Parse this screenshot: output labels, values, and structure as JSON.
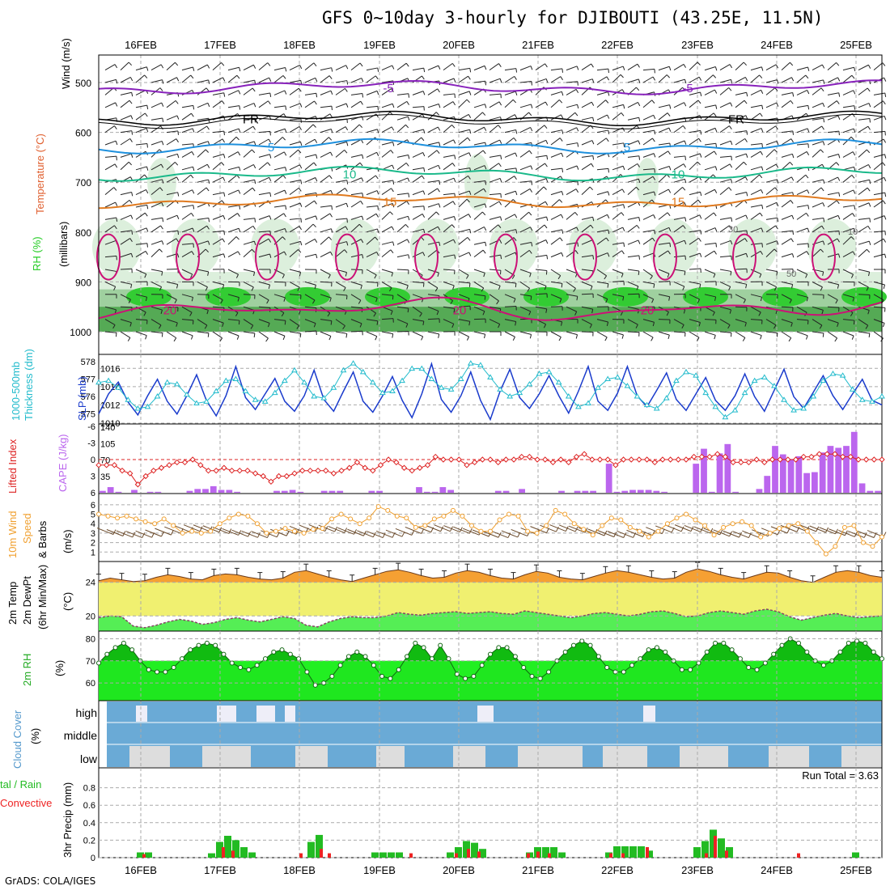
{
  "header": {
    "title": "GFS 0~10day 3-hourly for DJIBOUTI (43.25E, 11.5N)",
    "credit": "GrADS: COLA/IGES"
  },
  "colors": {
    "rh_green": "#33cc33",
    "rh_light": "#dcefdc",
    "rh_mid": "#9fd09f",
    "rh_dark": "#55aa55",
    "t_minus5": "#8822bb",
    "t_fr": "#000000",
    "t_5": "#1e90dd",
    "t_10": "#1ab98a",
    "t_15": "#e07a1f",
    "t_20": "#cc1177",
    "slp": "#1a3bcc",
    "thickness": "#22bbcc",
    "cape": "#bb66ee",
    "lifted_index": "#dd2222",
    "wind_speed": "#f0a030",
    "barbs": "#6b4a2a",
    "temp_fill": "#f5a033",
    "dew_band": "#f0f070",
    "dew_fill": "#55ee55",
    "rh2m_dark": "#11bb11",
    "rh2m_light": "#22ee22",
    "cloud_bg": "#6aaad6",
    "cloud_fill": "#dddddd",
    "precip_total": "#22bb22",
    "precip_conv": "#ee2222"
  },
  "chart_data": [
    {
      "panel": "upper-air",
      "type": "heatmap",
      "x_dates": [
        "16FEB",
        "17FEB",
        "18FEB",
        "19FEB",
        "20FEB",
        "21FEB",
        "22FEB",
        "23FEB",
        "24FEB",
        "25FEB"
      ],
      "yaxis": {
        "ticks": [
          500,
          600,
          700,
          800,
          900,
          1000
        ],
        "label_rh": "RH (%)",
        "label_temp": "Temperature (°C)",
        "label_wind": "Wind (m/s)",
        "label_units": "(millibars)"
      },
      "temperature_contours": [
        {
          "value": "-5",
          "color": "#8822bb",
          "level_mb": 510,
          "labels": [
            "-5",
            "-5"
          ]
        },
        {
          "value": "FR",
          "color": "#000000",
          "level_mb": 572,
          "labels": [
            "FR",
            "FR"
          ]
        },
        {
          "value": "5",
          "color": "#1e90dd",
          "level_mb": 628,
          "labels": [
            "5",
            "5"
          ]
        },
        {
          "value": "10",
          "color": "#1ab98a",
          "level_mb": 683,
          "labels": [
            "10",
            "10"
          ]
        },
        {
          "value": "15",
          "color": "#e07a1f",
          "level_mb": 738,
          "labels": [
            "15",
            "15"
          ]
        },
        {
          "value": "20",
          "color": "#cc1177",
          "level_mb": 955,
          "labels": [
            "20",
            "20",
            "20"
          ]
        }
      ],
      "rh_labels": [
        "30",
        "10",
        "50"
      ]
    },
    {
      "panel": "slp-thickness",
      "type": "line",
      "label_left": "1000-500mb Thickness (dm)",
      "label_right": "SLP (mb)",
      "thickness_ticks": [
        575,
        576,
        577,
        578
      ],
      "slp_ticks": [
        1010,
        1012,
        1014,
        1016
      ],
      "series": [
        {
          "name": "SLP (mb)",
          "values": [
            1011.0,
            1013.2,
            1014.5,
            1012.3,
            1010.9,
            1013.0,
            1014.8,
            1012.4,
            1011.0,
            1013.0,
            1015.3,
            1012.5,
            1010.8,
            1013.0,
            1016.2,
            1012.8,
            1011.5,
            1013.2,
            1014.9,
            1012.4,
            1011.3,
            1013.0,
            1015.8,
            1012.6,
            1011.3,
            1013.5,
            1015.6,
            1012.4,
            1011.2,
            1013.0,
            1015.1,
            1012.5,
            1010.6,
            1013.2,
            1016.5,
            1012.6,
            1011.2,
            1013.0,
            1015.6,
            1012.5,
            1010.4,
            1013.5,
            1015.9,
            1012.8,
            1011.6,
            1013.2,
            1015.2,
            1013.0,
            1011.1,
            1013.5,
            1016.2,
            1012.4,
            1011.4,
            1013.3,
            1016.2,
            1013.0,
            1011.8,
            1013.6,
            1015.5,
            1012.6,
            1011.4,
            1013.2,
            1015.0,
            1012.5,
            1011.4,
            1013.0,
            1015.4,
            1012.9,
            1011.3,
            1013.6,
            1015.9,
            1012.9,
            1011.6,
            1013.4,
            1015.2,
            1013.0,
            1011.5,
            1013.2,
            1014.8,
            1012.5,
            1012.0
          ]
        },
        {
          "name": "Thickness (dm)",
          "values": [
            576.8,
            576.9,
            576.5,
            575.8,
            575.3,
            575.4,
            576.0,
            576.8,
            576.7,
            576.1,
            575.6,
            575.7,
            576.3,
            576.9,
            577.0,
            576.3,
            575.8,
            575.7,
            576.2,
            576.9,
            577.5,
            576.8,
            576.0,
            575.9,
            576.5,
            577.5,
            577.9,
            577.4,
            576.8,
            576.2,
            576.3,
            576.9,
            577.6,
            577.6,
            577.0,
            576.5,
            576.4,
            577.0,
            577.9,
            577.8,
            577.1,
            576.4,
            576.0,
            576.2,
            576.7,
            577.3,
            577.4,
            576.8,
            576.0,
            575.4,
            575.6,
            576.5,
            577.0,
            577.1,
            576.6,
            576.0,
            575.5,
            575.3,
            575.9,
            576.9,
            577.4,
            577.2,
            576.2,
            575.4,
            574.8,
            575.2,
            576.2,
            576.9,
            577.1,
            576.6,
            575.8,
            575.2,
            575.3,
            576.0,
            576.9,
            577.3,
            577.2,
            576.4,
            575.8,
            575.7,
            576.0
          ]
        }
      ]
    },
    {
      "panel": "cape-lifted-index",
      "type": "bar",
      "label_left": "Lifted Index",
      "label_right": "CAPE (J/kg)",
      "li_ticks": [
        -6,
        -3,
        0,
        3,
        6
      ],
      "cape_ticks": [
        35,
        70,
        105,
        140
      ],
      "series": [
        {
          "name": "CAPE (J/kg)",
          "values": [
            4,
            12,
            2,
            0,
            6,
            0,
            2,
            2,
            0,
            0,
            0,
            4,
            8,
            8,
            14,
            6,
            6,
            2,
            0,
            0,
            0,
            0,
            4,
            4,
            6,
            2,
            0,
            0,
            4,
            4,
            4,
            0,
            0,
            0,
            4,
            4,
            0,
            0,
            0,
            0,
            12,
            2,
            2,
            12,
            6,
            0,
            0,
            0,
            0,
            0,
            4,
            4,
            0,
            8,
            0,
            0,
            0,
            0,
            4,
            0,
            4,
            4,
            4,
            0,
            62,
            2,
            4,
            6,
            6,
            6,
            4,
            2,
            0,
            0,
            0,
            62,
            94,
            2,
            84,
            104,
            2,
            0,
            0,
            8,
            36,
            100,
            82,
            72,
            78,
            42,
            44,
            86,
            100,
            96,
            100,
            130,
            20,
            4,
            4
          ]
        },
        {
          "name": "Lifted Index",
          "values": [
            1.0,
            1.0,
            1.0,
            2.0,
            2.5,
            4.5,
            3.0,
            2.0,
            1.5,
            1.0,
            0.5,
            0.5,
            0.0,
            1.0,
            2.0,
            2.0,
            1.5,
            2.0,
            2.0,
            2.0,
            2.5,
            3.0,
            4.0,
            3.0,
            3.0,
            2.5,
            2.0,
            2.0,
            2.0,
            2.0,
            2.5,
            2.0,
            1.5,
            0.5,
            1.5,
            2.0,
            1.0,
            0.0,
            0.5,
            1.5,
            2.0,
            1.5,
            1.0,
            -0.5,
            0.0,
            0.0,
            0.0,
            1.0,
            0.5,
            0.0,
            0.0,
            0.5,
            0.0,
            0.0,
            -0.5,
            -0.5,
            0.0,
            0.0,
            0.5,
            0.0,
            0.5,
            -0.5,
            -1.0,
            0.0,
            0.0,
            0.0,
            1.0,
            0.0,
            0.0,
            0.0,
            0.0,
            0.5,
            0.0,
            0.0,
            0.0,
            0.0,
            -0.5,
            -0.5,
            -0.5,
            -1.0,
            -0.5,
            0.5,
            0.5,
            0.5,
            0.0,
            0.5,
            0.0,
            0.0,
            0.0,
            0.0,
            -0.5,
            -0.5,
            -1.0,
            -1.0,
            -1.0,
            -0.5,
            -0.5,
            0.0,
            0.0,
            0.0,
            0.0
          ]
        }
      ]
    },
    {
      "panel": "wind10m",
      "type": "line",
      "label_left": "10m Wind Speed",
      "label_right": "& Barbs (m/s)",
      "ticks": [
        1,
        2,
        3,
        4,
        5,
        6
      ],
      "series": [
        {
          "name": "Speed",
          "values": [
            5.0,
            4.8,
            4.6,
            4.8,
            4.5,
            4.2,
            4.0,
            4.5,
            3.8,
            3.0,
            3.2,
            3.0,
            3.2,
            4.0,
            4.6,
            5.0,
            4.8,
            4.0,
            3.0,
            3.2,
            3.5,
            3.2,
            3.0,
            3.4,
            3.5,
            4.5,
            5.0,
            4.5,
            4.0,
            4.6,
            5.8,
            5.4,
            4.8,
            4.6,
            3.6,
            3.8,
            4.5,
            4.8,
            5.4,
            4.8,
            3.8,
            3.2,
            3.2,
            4.4,
            5.0,
            4.8,
            3.2,
            3.0,
            3.8,
            5.4,
            5.0,
            4.0,
            3.4,
            2.8,
            3.8,
            4.6,
            4.4,
            3.6,
            3.2,
            2.6,
            3.2,
            4.0,
            4.6,
            5.0,
            4.4,
            3.8,
            2.8,
            3.6,
            4.0,
            4.2,
            3.8,
            2.6,
            3.0,
            3.5,
            3.8,
            4.0,
            3.2,
            2.0,
            0.8,
            1.6,
            3.6,
            3.8,
            2.0,
            1.6,
            2.6
          ]
        }
      ]
    },
    {
      "panel": "temperature2m",
      "type": "area",
      "label": "2m Temp 2m DewPt (6hr Min/Max) (°C)",
      "ticks": [
        20,
        24
      ],
      "series": [
        {
          "name": "2m Temp",
          "values": [
            24.2,
            24.5,
            24.3,
            24.1,
            24.2,
            24.6,
            24.9,
            24.7,
            24.4,
            24.3,
            24.8,
            25.0,
            24.9,
            24.6,
            24.4,
            24.3,
            24.5,
            25.2,
            25.4,
            25.0,
            24.6,
            24.3,
            24.1,
            24.5,
            24.9,
            25.3,
            25.5,
            25.2,
            24.8,
            24.5,
            24.6,
            25.1,
            25.4,
            25.2,
            24.8,
            24.5,
            24.4,
            24.9,
            25.3,
            25.1,
            24.6,
            24.4,
            24.3,
            24.7,
            25.1,
            25.4,
            25.2,
            24.9,
            24.6,
            24.4,
            24.5,
            25.2,
            25.6,
            25.3,
            24.9,
            24.6,
            24.4,
            24.8,
            25.2,
            25.1,
            24.6,
            24.2,
            24.0,
            24.6,
            25.2,
            25.4,
            25.2,
            24.8,
            24.6
          ]
        },
        {
          "name": "2m DewPt",
          "values": [
            19.8,
            20.0,
            19.9,
            18.8,
            18.6,
            18.9,
            19.3,
            19.6,
            19.4,
            19.0,
            19.2,
            19.6,
            19.8,
            19.5,
            19.3,
            19.6,
            19.9,
            19.7,
            18.9,
            18.7,
            19.3,
            19.7,
            19.9,
            19.8,
            19.8,
            20.0,
            20.4,
            20.2,
            20.1,
            20.3,
            20.4,
            20.5,
            20.3,
            20.4,
            20.5,
            20.3,
            20.2,
            20.6,
            20.4,
            20.2,
            20.0,
            19.8,
            20.0,
            20.3,
            20.4,
            20.2,
            20.0,
            20.2,
            20.5,
            20.6,
            20.3,
            19.9,
            20.0,
            20.4,
            20.6,
            20.4,
            20.2,
            20.6,
            20.8,
            20.5,
            19.9,
            19.5,
            19.8,
            20.1,
            20.3,
            20.0,
            19.8,
            19.9,
            20.0
          ]
        }
      ]
    },
    {
      "panel": "rh2m",
      "type": "area",
      "label": "2m RH (%)",
      "ticks": [
        60,
        70,
        80
      ],
      "series": [
        {
          "name": "2m RH",
          "values": [
            69,
            73,
            76,
            78,
            75,
            70,
            66,
            65,
            65,
            67,
            71,
            75,
            77,
            78,
            77,
            73,
            69,
            67,
            66,
            68,
            71,
            74,
            75,
            73,
            71,
            65,
            59,
            60,
            63,
            68,
            72,
            74,
            72,
            68,
            63,
            62,
            66,
            72,
            78,
            76,
            71,
            77,
            71,
            64,
            62,
            63,
            68,
            73,
            76,
            76,
            72,
            67,
            63,
            62,
            65,
            70,
            74,
            77,
            79,
            77,
            72,
            67,
            65,
            65,
            68,
            71,
            75,
            76,
            74,
            70,
            66,
            66,
            69,
            74,
            78,
            78,
            75,
            71,
            67,
            66,
            69,
            73,
            77,
            80,
            78,
            74,
            70,
            68,
            70,
            74,
            78,
            79,
            78,
            74,
            71
          ]
        }
      ]
    },
    {
      "panel": "cloud-cover",
      "type": "bar",
      "label": "Cloud Cover (%)",
      "rows": [
        "high",
        "middle",
        "low"
      ]
    },
    {
      "panel": "precip",
      "type": "bar",
      "label_left": "Total / Rain",
      "label_conv": "Convective",
      "ylabel": "3hr Precip (mm)",
      "ticks": [
        0,
        0.2,
        0.4,
        0.6,
        0.8
      ],
      "annotation": "Run Total = 3.63"
    }
  ],
  "chart_labels": {
    "date_labels": [
      "16FEB",
      "17FEB",
      "18FEB",
      "19FEB",
      "20FEB",
      "21FEB",
      "22FEB",
      "23FEB",
      "24FEB",
      "25FEB"
    ],
    "rh_pct": "RH (%)",
    "temperature": "Temperature (°C)",
    "wind_ms": "Wind (m/s)",
    "millibars": "(millibars)",
    "thickness": "1000-500mb",
    "thickness2": "Thickness (dm)",
    "slp": "SLP (mb)",
    "lifted": "Lifted Index",
    "cape": "CAPE (J/kg)",
    "wind10_a": "10m Wind",
    "wind10_b": "Speed",
    "wind10_c": "& Barbs",
    "wind10_d": "(m/s)",
    "t2_a": "2m Temp",
    "t2_b": "2m DewPt",
    "t2_c": "(6hr Min/Max)",
    "t2_d": "(°C)",
    "rh2": "2m RH",
    "rh2_pct": "(%)",
    "cloud_a": "Cloud Cover",
    "cloud_b": "(%)",
    "high": "high",
    "middle": "middle",
    "low": "low",
    "precip_a": "tal / Rain",
    "precip_b": "Convective",
    "precip_c": "3hr Precip (mm)",
    "run_total": "Run Total = 3.63",
    "fr": "FR"
  }
}
